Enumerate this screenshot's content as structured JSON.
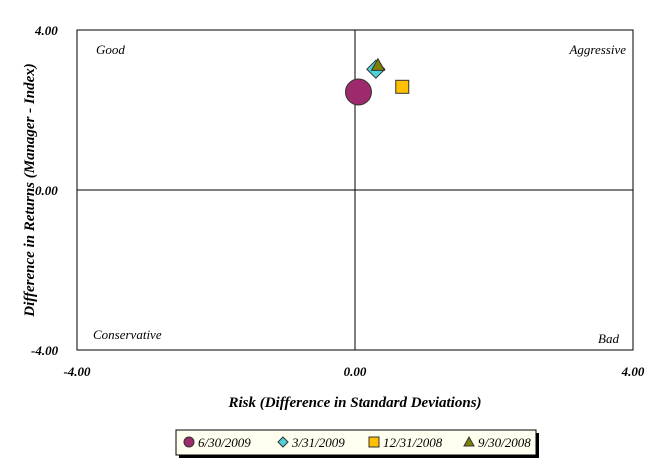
{
  "chart_data": {
    "type": "scatter",
    "xlabel": "Risk (Difference in Standard Deviations)",
    "ylabel": "Difference in Returns (Manager - Index)",
    "xlim": [
      -4,
      4
    ],
    "ylim": [
      -4,
      4
    ],
    "x_ticks": [
      "-4.00",
      "0.00",
      "4.00"
    ],
    "y_ticks": [
      "4.00",
      "0.00",
      "-4.00"
    ],
    "grid": false,
    "legend_position": "bottom",
    "quadrant_labels": {
      "top_left": "Good",
      "top_right": "Aggressive",
      "bottom_left": "Conservative",
      "bottom_right": "Bad"
    },
    "series": [
      {
        "name": "6/30/2009",
        "marker": "circle",
        "color": "#9e2a6e",
        "x": 0.05,
        "y": 2.45,
        "size": "large"
      },
      {
        "name": "3/31/2009",
        "marker": "diamond",
        "color": "#4fd1d9",
        "x": 0.3,
        "y": 3.02,
        "size": "medium"
      },
      {
        "name": "12/31/2008",
        "marker": "square",
        "color": "#ffc000",
        "x": 0.68,
        "y": 2.58,
        "size": "small"
      },
      {
        "name": "9/30/2008",
        "marker": "triangle",
        "color": "#808000",
        "x": 0.33,
        "y": 3.12,
        "size": "small"
      }
    ]
  }
}
